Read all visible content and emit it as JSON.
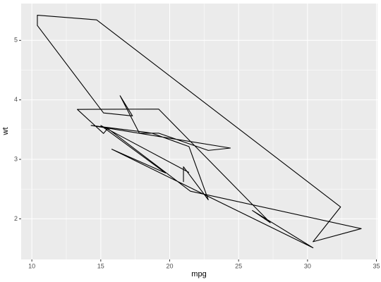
{
  "chart_data": {
    "type": "path",
    "xlabel": "mpg",
    "ylabel": "wt",
    "x": [
      21.0,
      21.0,
      22.8,
      21.4,
      18.7,
      18.1,
      14.3,
      24.4,
      22.8,
      19.2,
      17.8,
      16.4,
      17.3,
      15.2,
      10.4,
      10.4,
      14.7,
      32.4,
      30.4,
      33.9,
      21.5,
      15.5,
      15.2,
      13.3,
      19.2,
      27.3,
      26.0,
      30.4,
      15.8,
      19.7,
      15.0,
      21.4
    ],
    "series": [
      {
        "color": "#000000",
        "values": [
          2.62,
          2.875,
          2.32,
          3.215,
          3.44,
          3.46,
          3.57,
          3.19,
          3.15,
          3.44,
          3.44,
          4.07,
          3.73,
          3.78,
          5.25,
          5.424,
          5.345,
          2.2,
          1.615,
          1.835,
          2.465,
          3.52,
          3.435,
          3.84,
          3.845,
          1.935,
          2.14,
          1.513,
          3.17,
          2.77,
          3.57,
          2.78
        ]
      }
    ],
    "xlim": [
      9.225,
      35.075
    ],
    "xticks": [
      10,
      15,
      20,
      25,
      30,
      35
    ],
    "ylim": [
      1.317,
      5.62
    ],
    "yticks": [
      2,
      3,
      4,
      5
    ],
    "grid": true,
    "minor_grid": true,
    "background": "#ebebeb",
    "grid_color": "#ffffff"
  }
}
